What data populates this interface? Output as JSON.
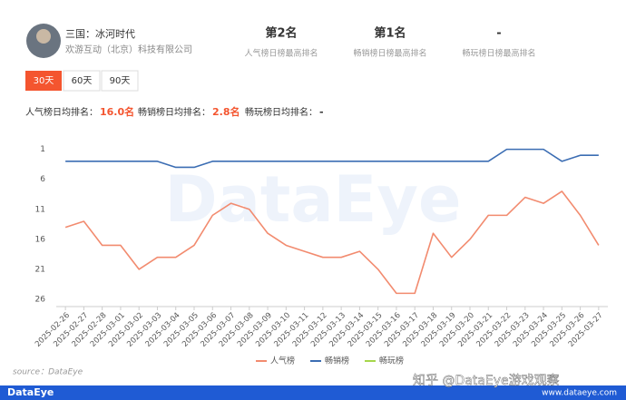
{
  "app": {
    "name": "三国：冰河时代",
    "company": "欢游互动（北京）科技有限公司"
  },
  "stats": [
    {
      "value": "第2名",
      "label": "人气榜日榜最高排名"
    },
    {
      "value": "第1名",
      "label": "畅销榜日榜最高排名"
    },
    {
      "value": "-",
      "label": "畅玩榜日榜最高排名"
    }
  ],
  "tabs": [
    "30天",
    "60天",
    "90天"
  ],
  "averages": [
    {
      "label": "人气榜日均排名：",
      "value": "16.0名"
    },
    {
      "label": "畅销榜日均排名：",
      "value": "2.8名"
    },
    {
      "label": "畅玩榜日均排名：",
      "value": "-"
    }
  ],
  "watermark": "DataEye",
  "source": "source：DataEye",
  "footer": {
    "brand": "DataEye",
    "credit": "知乎 @DataEye游戏观察",
    "url": "www.dataeye.com"
  },
  "chart_data": {
    "type": "line",
    "categories": [
      "2025-02-26",
      "2025-02-27",
      "2025-02-28",
      "2025-03-01",
      "2025-03-02",
      "2025-03-03",
      "2025-03-04",
      "2025-03-05",
      "2025-03-06",
      "2025-03-07",
      "2025-03-08",
      "2025-03-09",
      "2025-03-10",
      "2025-03-11",
      "2025-03-12",
      "2025-03-13",
      "2025-03-14",
      "2025-03-15",
      "2025-03-16",
      "2025-03-17",
      "2025-03-18",
      "2025-03-19",
      "2025-03-20",
      "2025-03-21",
      "2025-03-22",
      "2025-03-23",
      "2025-03-24",
      "2025-03-25",
      "2025-03-26",
      "2025-03-27"
    ],
    "series": [
      {
        "name": "人气榜",
        "color": "#f28b6f",
        "values": [
          14,
          13,
          17,
          17,
          21,
          19,
          19,
          17,
          12,
          10,
          11,
          15,
          17,
          18,
          19,
          19,
          18,
          21,
          25,
          25,
          15,
          19,
          16,
          12,
          12,
          9,
          10,
          8,
          12,
          17
        ]
      },
      {
        "name": "畅销榜",
        "color": "#3b6db3",
        "values": [
          3,
          3,
          3,
          3,
          3,
          3,
          4,
          4,
          3,
          3,
          3,
          3,
          3,
          3,
          3,
          3,
          3,
          3,
          3,
          3,
          3,
          3,
          3,
          3,
          1,
          1,
          1,
          3,
          2,
          2
        ]
      },
      {
        "name": "畅玩榜",
        "color": "#a6d64b",
        "values": [
          null,
          null,
          null,
          null,
          null,
          null,
          null,
          null,
          null,
          null,
          null,
          null,
          null,
          null,
          null,
          null,
          null,
          null,
          null,
          null,
          null,
          null,
          null,
          null,
          null,
          null,
          null,
          null,
          null,
          null
        ]
      }
    ],
    "ylim": [
      0,
      26
    ],
    "y_inverted": true,
    "yticks": [
      1,
      6,
      11,
      16,
      21,
      26
    ],
    "grid": false
  }
}
